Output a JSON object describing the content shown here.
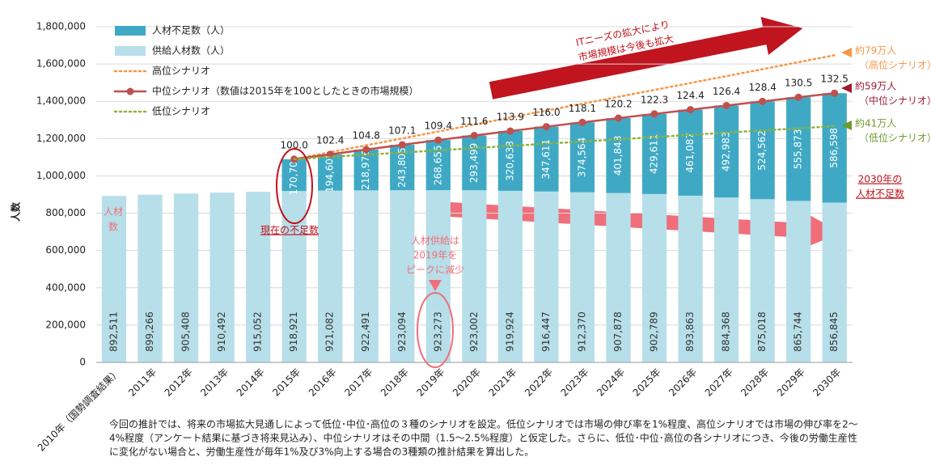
{
  "chart_data": {
    "type": "bar",
    "stacked": true,
    "y_label": "人数",
    "categories": [
      "2010年（国勢調査結果）",
      "2011年",
      "2012年",
      "2013年",
      "2014年",
      "2015年",
      "2016年",
      "2017年",
      "2018年",
      "2019年",
      "2020年",
      "2021年",
      "2022年",
      "2023年",
      "2024年",
      "2025年",
      "2026年",
      "2027年",
      "2028年",
      "2029年",
      "2030年"
    ],
    "ylim": [
      0,
      1800000
    ],
    "yticks": [
      0,
      {
        "value": 200000,
        "label": "200,000"
      },
      {
        "value": 400000,
        "label": "400,000"
      },
      {
        "value": 600000,
        "label": "600,000"
      },
      {
        "value": 800000,
        "label": "800,000"
      },
      {
        "value": 1000000,
        "label": "1,000,000"
      },
      {
        "value": 1200000,
        "label": "1,200,000"
      },
      {
        "value": 1400000,
        "label": "1,400,000"
      },
      {
        "value": 1600000,
        "label": "1,600,000"
      },
      {
        "value": 1800000,
        "label": "1,800,000"
      }
    ],
    "series": [
      {
        "name": "人材不足数（人）",
        "type": "bar",
        "color": "#3fa9c5",
        "values": [
          null,
          null,
          null,
          null,
          null,
          170700,
          194608,
          218976,
          243805,
          268655,
          293499,
          320638,
          347611,
          374564,
          401843,
          429611,
          461087,
          492983,
          524562,
          555873,
          586598
        ],
        "value_labels": [
          null,
          null,
          null,
          null,
          null,
          "170,700",
          "194,608",
          "218,976",
          "243,805",
          "268,655",
          "293,499",
          "320,638",
          "347,611",
          "374,564",
          "401,843",
          "429,611",
          "461,087",
          "492,983",
          "524,562",
          "555,873",
          "586,598"
        ]
      },
      {
        "name": "供給人材数（人）",
        "type": "bar",
        "color": "#b7dfe9",
        "values": [
          892511,
          899266,
          905408,
          910492,
          915052,
          918921,
          921082,
          922491,
          923094,
          923273,
          923002,
          919924,
          916447,
          912370,
          907878,
          902789,
          893863,
          884368,
          875018,
          865744,
          856845
        ],
        "value_labels": [
          "892,511",
          "899,266",
          "905,408",
          "910,492",
          "915,052",
          "918,921",
          "921,082",
          "922,491",
          "923,094",
          "923,273",
          "923,002",
          "919,924",
          "916,447",
          "912,370",
          "907,878",
          "902,789",
          "893,863",
          "884,368",
          "875,018",
          "865,744",
          "856,845"
        ]
      },
      {
        "name": "高位シナリオ",
        "type": "line",
        "style": "dotted",
        "color": "#f79646",
        "values": [
          null,
          null,
          null,
          null,
          null,
          1090000,
          1127000,
          1164000,
          1201000,
          1238000,
          1275000,
          1313000,
          1350000,
          1387000,
          1424000,
          1461000,
          1498000,
          1535000,
          1572000,
          1610000,
          1647000
        ]
      },
      {
        "name": "中位シナリオ（数値は2015年を100としたときの市場規模）",
        "type": "line",
        "style": "solid",
        "markers": true,
        "color": "#c0504d",
        "values": [
          null,
          null,
          null,
          null,
          null,
          1089621,
          1115690,
          1141467,
          1166899,
          1191928,
          1216501,
          1240562,
          1264058,
          1286934,
          1309721,
          1332400,
          1354950,
          1377351,
          1399580,
          1421617,
          1443443
        ],
        "index_labels": [
          null,
          null,
          null,
          null,
          null,
          "100.0",
          "102.4",
          "104.8",
          "107.1",
          "109.4",
          "111.6",
          "113.9",
          "116.0",
          "118.1",
          "120.2",
          "122.3",
          "124.4",
          "126.4",
          "128.4",
          "130.5",
          "132.5"
        ]
      },
      {
        "name": "低位シナリオ",
        "type": "line",
        "style": "dotted",
        "color": "#8db33a",
        "values": [
          null,
          null,
          null,
          null,
          null,
          1090000,
          1102000,
          1114000,
          1125000,
          1137000,
          1149000,
          1161000,
          1173000,
          1184000,
          1196000,
          1208000,
          1220000,
          1232000,
          1244000,
          1255000,
          1267000
        ]
      }
    ],
    "annotations": {
      "market": [
        "ITニーズの拡大により",
        "市場規模は今後も拡大"
      ],
      "current": "現在の不足数",
      "peak": [
        "人材供給は",
        "2019年を",
        "ピークに減少"
      ],
      "labor": [
        "人材",
        "数"
      ],
      "high": [
        "約79万人",
        "（高位シナリオ）"
      ],
      "mid": [
        "約59万人",
        "（中位シナリオ）"
      ],
      "low": [
        "約41万人",
        "（低位シナリオ）"
      ],
      "shortage2030": [
        "2030年の",
        "人材不足数"
      ]
    },
    "footnote": [
      "今回の推計では、将来の市場拡大見通しによって低位･中位･高位の３種のシナリオを設定。低位シナリオでは市場の伸び率を1%程度、高位シナリオでは市場の伸び率を2～",
      "4%程度（アンケート結果に基づき将来見込み）、中位シナリオはその中間（1.5～2.5%程度）と仮定した。さらに、低位･中位･高位の各シナリオにつき、今後の労働生産性",
      "に変化がない場合と、労働生産性が毎年1%及び3%向上する場合の3種類の推計結果を算出した。"
    ]
  }
}
